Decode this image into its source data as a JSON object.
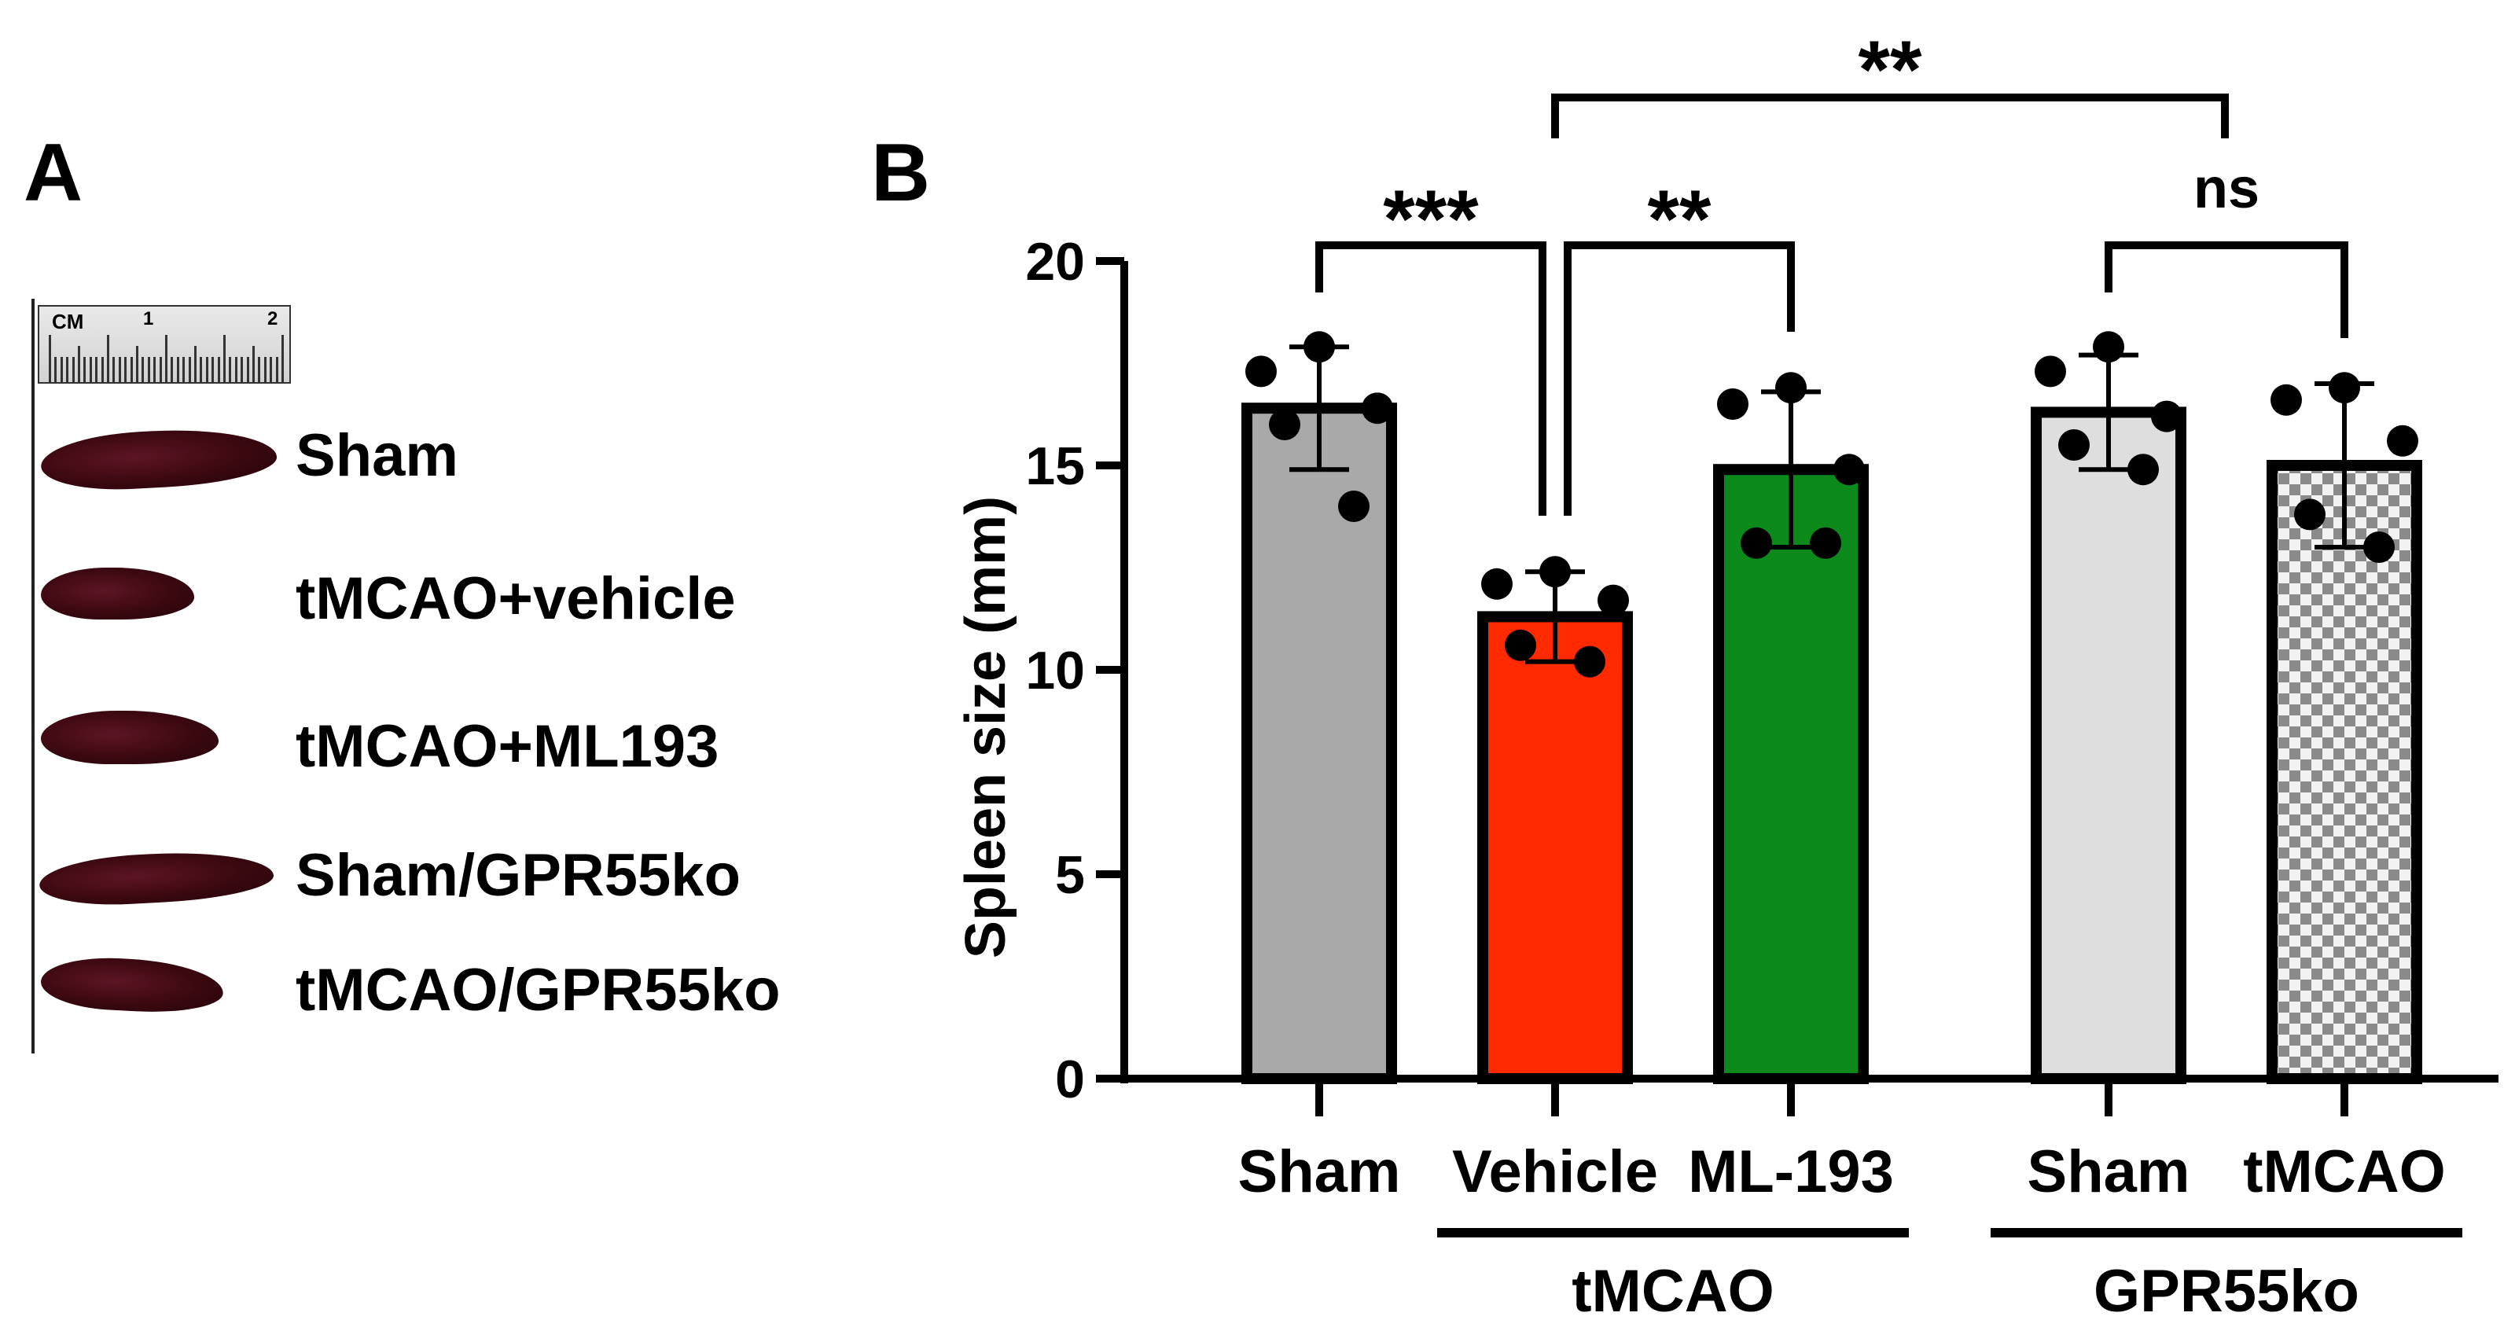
{
  "panel_a": {
    "letter": "A",
    "ruler": {
      "unit": "CM",
      "marks": [
        "1",
        "2"
      ]
    },
    "labels": [
      "Sham",
      "tMCAO+vehicle",
      "tMCAO+ML193",
      "Sham/GPR55ko",
      "tMCAO/GPR55ko"
    ]
  },
  "panel_b": {
    "letter": "B"
  },
  "colors": {
    "sham": "#a9a9a9",
    "vehicle": "#ff2a00",
    "ml193": "#0b8a1b",
    "ko_sham": "#dedede",
    "ko_tmcao_checker_a": "#8a8a8a",
    "ko_tmcao_checker_b": "#f2f2f2",
    "spleen": "#3b0810"
  },
  "chart_data": {
    "type": "bar",
    "title": "",
    "xlabel": "",
    "ylabel": "Spleen size (mm)",
    "ylim": [
      0,
      20
    ],
    "yticks": [
      0,
      5,
      10,
      15,
      20
    ],
    "categories": [
      "Sham",
      "Vehicle",
      "ML-193",
      "Sham",
      "tMCAO"
    ],
    "values": [
      16.4,
      11.3,
      14.9,
      16.3,
      15.0
    ],
    "errors": [
      1.5,
      1.1,
      1.9,
      1.4,
      2.0
    ],
    "points": [
      [
        17.9,
        17.3,
        16.4,
        16.0,
        14.0
      ],
      [
        12.4,
        12.1,
        11.7,
        10.6,
        10.2
      ],
      [
        16.9,
        16.5,
        14.9,
        13.1,
        13.1
      ],
      [
        17.9,
        17.3,
        16.2,
        15.5,
        14.9
      ],
      [
        16.9,
        16.6,
        15.6,
        13.8,
        13.0
      ]
    ],
    "groups": [
      {
        "label": "tMCAO",
        "members": [
          1,
          2
        ]
      },
      {
        "label": "GPR55ko",
        "members": [
          3,
          4
        ]
      }
    ],
    "significance": [
      {
        "from": 0,
        "to": 1,
        "label": "***"
      },
      {
        "from": 1,
        "to": 2,
        "label": "**"
      },
      {
        "from": 1,
        "to": 3.5,
        "label": "**"
      },
      {
        "from": 3,
        "to": 4,
        "label": "ns"
      }
    ]
  }
}
